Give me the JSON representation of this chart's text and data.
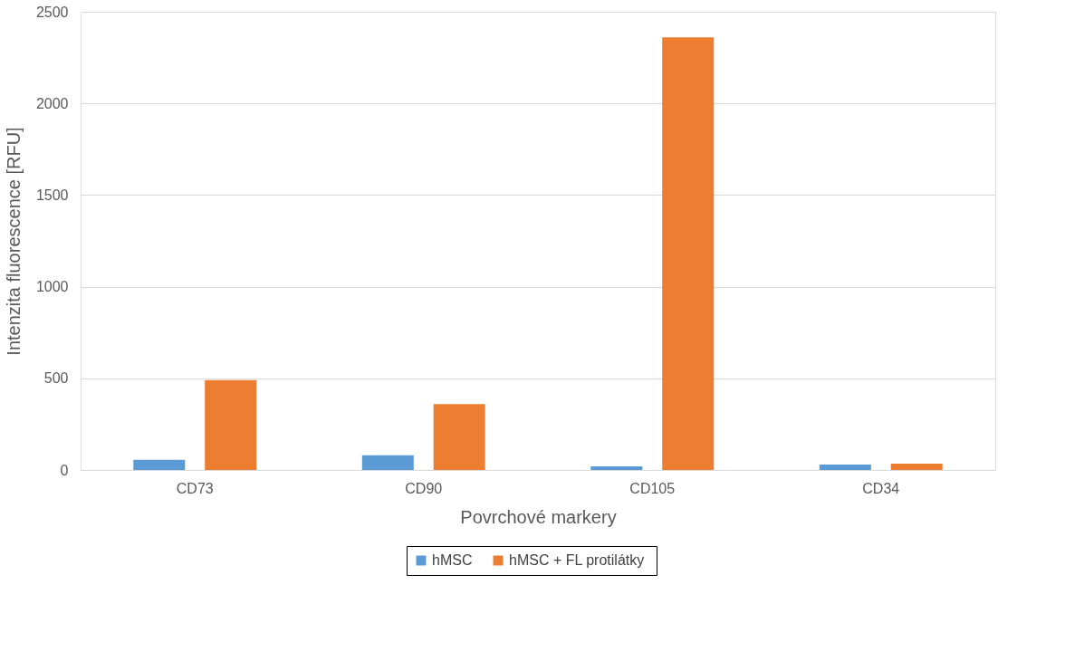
{
  "chart_data": {
    "type": "bar",
    "xlabel": "Povrchové markery",
    "ylabel": "Intenzita fluorescence [RFU]",
    "categories": [
      "CD73",
      "CD90",
      "CD105",
      "CD34"
    ],
    "series": [
      {
        "name": "hMSC",
        "color": "#5b9bd5",
        "values": [
          55,
          80,
          20,
          30
        ]
      },
      {
        "name": "hMSC  + FL protilátky",
        "color": "#ed7d31",
        "values": [
          490,
          360,
          2360,
          35
        ]
      }
    ],
    "ylim": [
      0,
      2500
    ],
    "yticks": [
      0,
      500,
      1000,
      1500,
      2000,
      2500
    ],
    "grid": "y",
    "legend": "bottom"
  }
}
